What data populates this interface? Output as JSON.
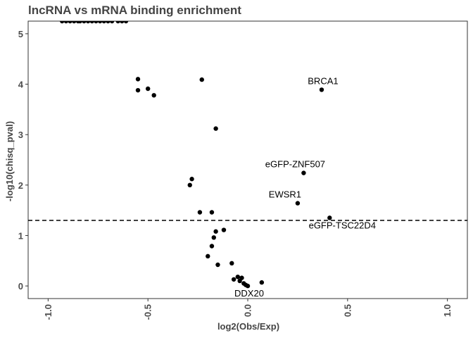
{
  "chart_data": {
    "type": "scatter",
    "title": "lncRNA vs mRNA binding enrichment",
    "xlabel": "log2(Obs/Exp)",
    "ylabel": "-log10(chisq_pval)",
    "xlim": [
      -1.1,
      1.1
    ],
    "ylim": [
      -0.25,
      5.25
    ],
    "x_ticks": [
      -1.0,
      -0.5,
      0.0,
      0.5,
      1.0
    ],
    "x_tick_labels": [
      "-1.0",
      "-0.5",
      "0.0",
      "0.5",
      "1.0"
    ],
    "y_ticks": [
      0,
      1,
      2,
      3,
      4,
      5
    ],
    "y_tick_labels": [
      "0",
      "1",
      "2",
      "3",
      "4",
      "5"
    ],
    "grid": false,
    "point_color": "#000000",
    "threshold": {
      "y": 1.3,
      "style": "dashed",
      "color": "#000000"
    },
    "points": [
      {
        "x": -0.93,
        "y": 5.25
      },
      {
        "x": -0.91,
        "y": 5.25
      },
      {
        "x": -0.89,
        "y": 5.25
      },
      {
        "x": -0.87,
        "y": 5.25
      },
      {
        "x": -0.85,
        "y": 5.25
      },
      {
        "x": -0.84,
        "y": 5.25
      },
      {
        "x": -0.82,
        "y": 5.25
      },
      {
        "x": -0.8,
        "y": 5.25
      },
      {
        "x": -0.78,
        "y": 5.25
      },
      {
        "x": -0.76,
        "y": 5.25
      },
      {
        "x": -0.74,
        "y": 5.25
      },
      {
        "x": -0.72,
        "y": 5.25
      },
      {
        "x": -0.7,
        "y": 5.25
      },
      {
        "x": -0.68,
        "y": 5.25
      },
      {
        "x": -0.65,
        "y": 5.25
      },
      {
        "x": -0.63,
        "y": 5.25
      },
      {
        "x": -0.61,
        "y": 5.25
      },
      {
        "x": -0.55,
        "y": 4.1
      },
      {
        "x": -0.55,
        "y": 3.88
      },
      {
        "x": -0.5,
        "y": 3.91
      },
      {
        "x": -0.47,
        "y": 3.78
      },
      {
        "x": -0.23,
        "y": 4.09
      },
      {
        "x": -0.16,
        "y": 3.12
      },
      {
        "x": -0.28,
        "y": 2.12
      },
      {
        "x": -0.29,
        "y": 2.0
      },
      {
        "x": -0.24,
        "y": 1.46
      },
      {
        "x": -0.18,
        "y": 1.46
      },
      {
        "x": -0.16,
        "y": 1.08
      },
      {
        "x": -0.12,
        "y": 1.11
      },
      {
        "x": -0.17,
        "y": 0.96
      },
      {
        "x": -0.18,
        "y": 0.79
      },
      {
        "x": -0.2,
        "y": 0.59
      },
      {
        "x": -0.15,
        "y": 0.42
      },
      {
        "x": -0.08,
        "y": 0.45
      },
      {
        "x": -0.05,
        "y": 0.18
      },
      {
        "x": -0.03,
        "y": 0.16
      },
      {
        "x": -0.07,
        "y": 0.13
      },
      {
        "x": -0.04,
        "y": 0.1
      },
      {
        "x": -0.02,
        "y": 0.05
      },
      {
        "x": -0.01,
        "y": 0.02
      },
      {
        "x": 0.07,
        "y": 0.07
      },
      {
        "x": 0.37,
        "y": 3.89,
        "label": "BRCA1"
      },
      {
        "x": 0.28,
        "y": 2.24,
        "label": "eGFP-ZNF507"
      },
      {
        "x": 0.25,
        "y": 1.64,
        "label": "EWSR1"
      },
      {
        "x": 0.41,
        "y": 1.35,
        "label": "eGFP-TSC22D4"
      },
      {
        "x": 0.0,
        "y": 0.0,
        "label": "DDX20"
      }
    ]
  }
}
